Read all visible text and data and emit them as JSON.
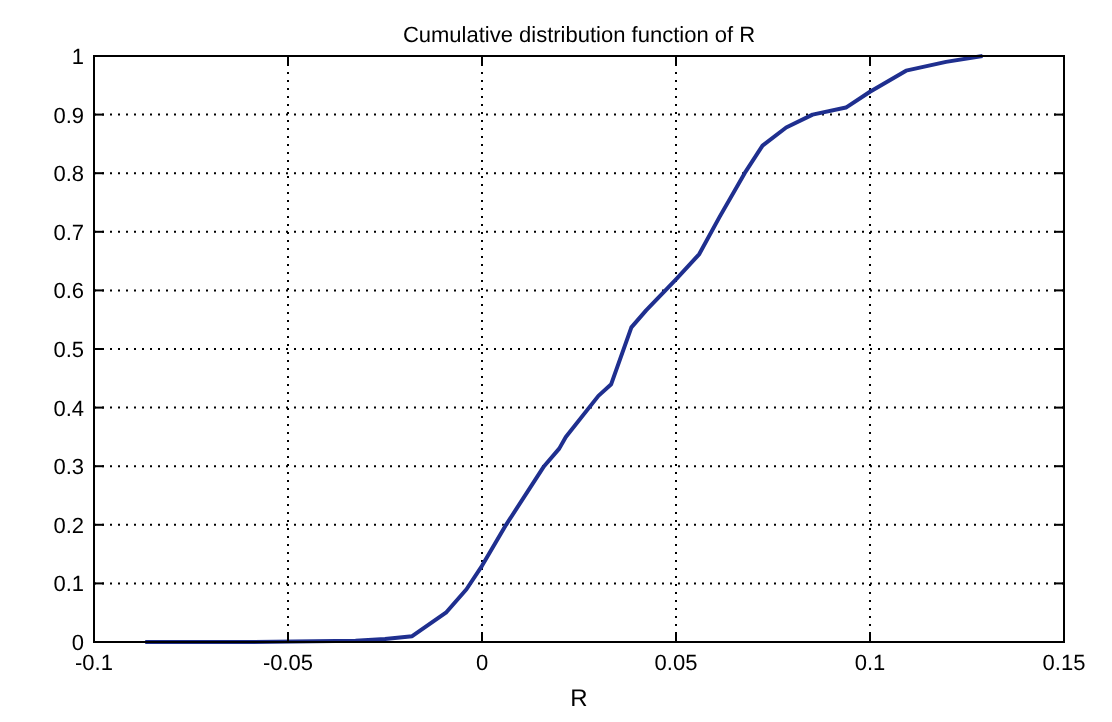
{
  "chart_data": {
    "type": "line",
    "title": "Cumulative distribution function of R",
    "xlabel": "R",
    "xlim": [
      -0.1,
      0.15
    ],
    "xticks": [
      -0.1,
      -0.05,
      0,
      0.05,
      0.1,
      0.15
    ],
    "ylim": [
      0,
      1
    ],
    "yticks": [
      0,
      0.1,
      0.2,
      0.3,
      0.4,
      0.5,
      0.6,
      0.7,
      0.8,
      0.9,
      1
    ],
    "grid": true,
    "series": [
      {
        "color": "#1f2f8f",
        "x": [
          -0.0868,
          -0.06,
          -0.0326,
          -0.025,
          -0.018,
          -0.0093,
          -0.004,
          0,
          0.0062,
          0.016,
          0.0199,
          0.0216,
          0.03,
          0.0333,
          0.0385,
          0.0423,
          0.05,
          0.056,
          0.0612,
          0.0677,
          0.0723,
          0.0784,
          0.0852,
          0.0938,
          0.1,
          0.1093,
          0.1196,
          0.129
        ],
        "values": [
          0,
          0,
          0.002,
          0.005,
          0.01,
          0.05,
          0.09,
          0.13,
          0.2,
          0.3,
          0.33,
          0.35,
          0.42,
          0.44,
          0.537,
          0.566,
          0.619,
          0.662,
          0.725,
          0.8,
          0.847,
          0.878,
          0.9,
          0.912,
          0.939,
          0.975,
          0.99,
          1
        ]
      }
    ]
  }
}
